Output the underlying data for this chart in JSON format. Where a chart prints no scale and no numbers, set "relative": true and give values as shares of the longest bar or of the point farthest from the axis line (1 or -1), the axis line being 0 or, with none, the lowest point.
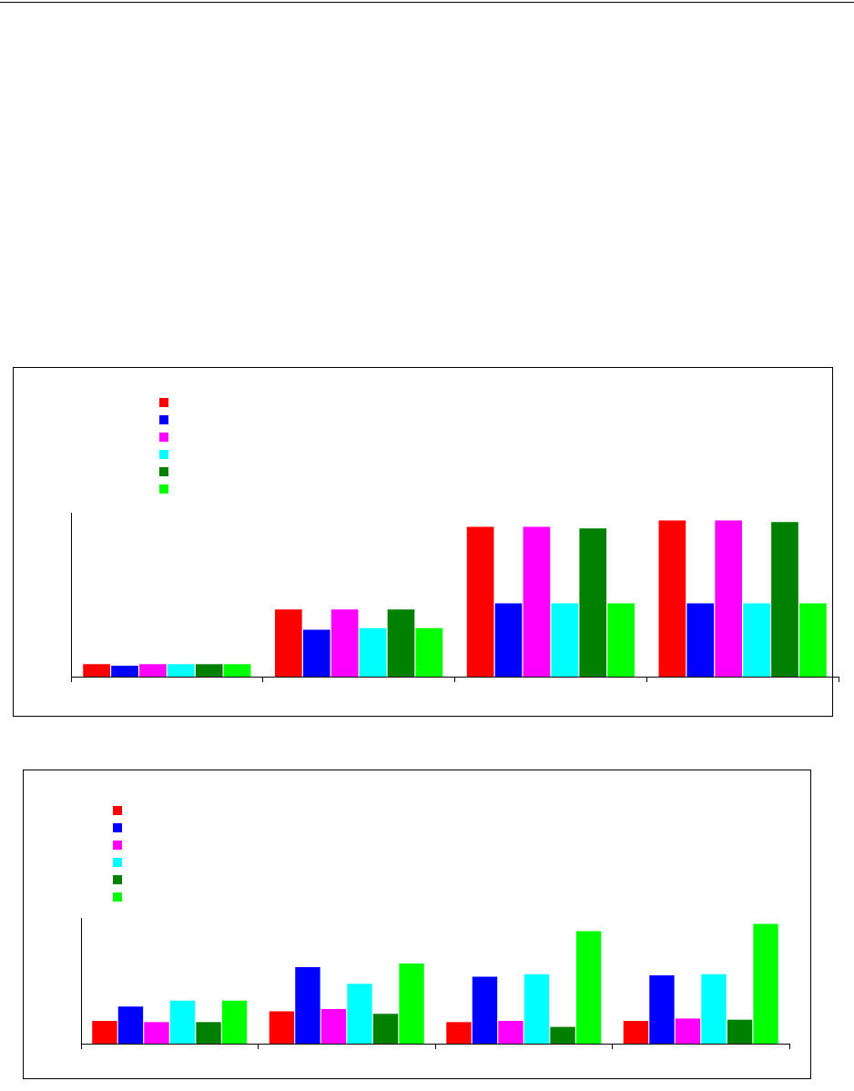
{
  "chart_data": [
    {
      "type": "bar",
      "relative": true,
      "categories": [
        null,
        null,
        null,
        null
      ],
      "grid": false,
      "tick_labels": false,
      "series": [
        {
          "color": "#ff0000",
          "values": [
            0.08,
            0.43,
            0.96,
            1
          ]
        },
        {
          "color": "#0000ff",
          "values": [
            0.07,
            0.3,
            0.47,
            0.47
          ]
        },
        {
          "color": "#ff00ff",
          "values": [
            0.08,
            0.43,
            0.96,
            1
          ]
        },
        {
          "color": "#00ffff",
          "values": [
            0.08,
            0.31,
            0.47,
            0.47
          ]
        },
        {
          "color": "#008000",
          "values": [
            0.08,
            0.43,
            0.95,
            0.99
          ]
        },
        {
          "color": "#00ff00",
          "values": [
            0.08,
            0.31,
            0.47,
            0.47
          ]
        }
      ]
    },
    {
      "type": "bar",
      "relative": true,
      "categories": [
        null,
        null,
        null,
        null
      ],
      "grid": false,
      "tick_labels": false,
      "series": [
        {
          "color": "#ff0000",
          "values": [
            0.19,
            0.27,
            0.18,
            0.19
          ]
        },
        {
          "color": "#0000ff",
          "values": [
            0.31,
            0.64,
            0.56,
            0.57
          ]
        },
        {
          "color": "#ff00ff",
          "values": [
            0.18,
            0.29,
            0.19,
            0.21
          ]
        },
        {
          "color": "#00ffff",
          "values": [
            0.36,
            0.5,
            0.58,
            0.58
          ]
        },
        {
          "color": "#008000",
          "values": [
            0.18,
            0.25,
            0.14,
            0.2
          ]
        },
        {
          "color": "#00ff00",
          "values": [
            0.36,
            0.67,
            0.94,
            1
          ]
        }
      ]
    }
  ]
}
